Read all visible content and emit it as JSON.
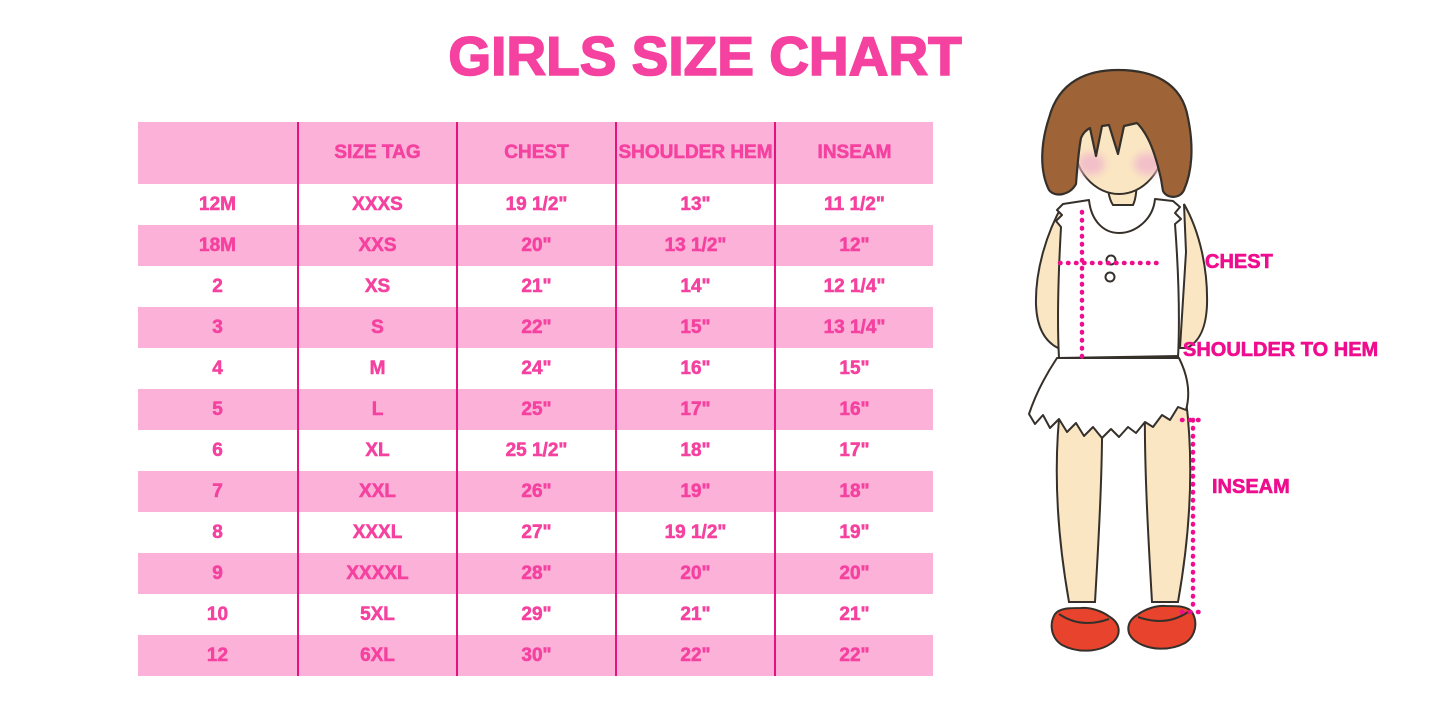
{
  "title": "GIRLS SIZE CHART",
  "table": {
    "headers": [
      "",
      "SIZE TAG",
      "CHEST",
      "SHOULDER HEM",
      "INSEAM"
    ],
    "rows": [
      [
        "12M",
        "XXXS",
        "19 1/2\"",
        "13\"",
        "11 1/2\""
      ],
      [
        "18M",
        "XXS",
        "20\"",
        "13 1/2\"",
        "12\""
      ],
      [
        "2",
        "XS",
        "21\"",
        "14\"",
        "12 1/4\""
      ],
      [
        "3",
        "S",
        "22\"",
        "15\"",
        "13 1/4\""
      ],
      [
        "4",
        "M",
        "24\"",
        "16\"",
        "15\""
      ],
      [
        "5",
        "L",
        "25\"",
        "17\"",
        "16\""
      ],
      [
        "6",
        "XL",
        "25 1/2\"",
        "18\"",
        "17\""
      ],
      [
        "7",
        "XXL",
        "26\"",
        "19\"",
        "18\""
      ],
      [
        "8",
        "XXXL",
        "27\"",
        "19 1/2\"",
        "19\""
      ],
      [
        "9",
        "XXXXL",
        "28\"",
        "20\"",
        "20\""
      ],
      [
        "10",
        "5XL",
        "29\"",
        "21\"",
        "21\""
      ],
      [
        "12",
        "6XL",
        "30\"",
        "22\"",
        "22\""
      ]
    ]
  },
  "figure": {
    "labels": {
      "chest": "CHEST",
      "shoulder_to_hem": "SHOULDER TO HEM",
      "inseam": "INSEAM"
    }
  },
  "colors": {
    "title_pink": "#F5419F",
    "row_pink": "#FBB1D8",
    "separator_pink": "#E5137F",
    "label_magenta": "#EE0D8E",
    "hair_brown": "#9E6438",
    "skin": "#FAE6C2",
    "blush": "#F2BFC9",
    "shoe_red": "#E8432C"
  }
}
